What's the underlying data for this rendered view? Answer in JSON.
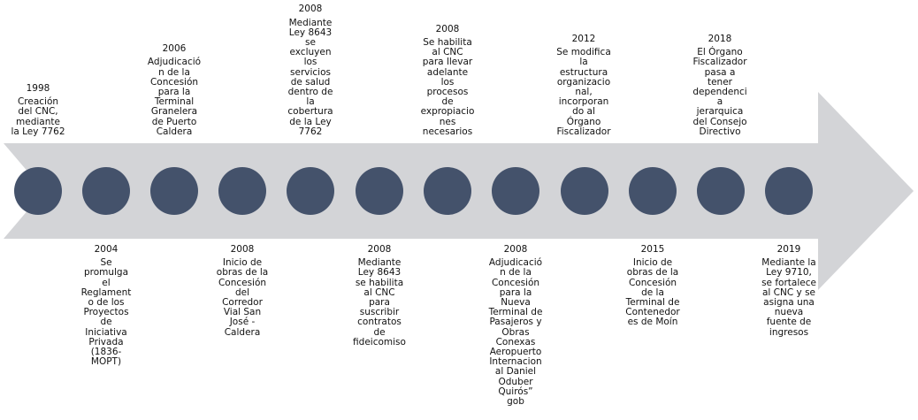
{
  "colors": {
    "arrow": "#d3d4d7",
    "dot": "#44526b",
    "text": "#111111"
  },
  "events_above": [
    {
      "year": "1998",
      "text": "Creación del CNC, mediante la Ley 7762"
    },
    {
      "year": "2006",
      "text": "Adjudicación de la Concesión para la Terminal Granelera de Puerto Caldera"
    },
    {
      "year": "2008",
      "text": "Mediante Ley 8643 se excluyen los servicios de salud dentro de la cobertura de la Ley 7762"
    },
    {
      "year": "2008",
      "text": "Se habilita al CNC para llevar adelante los procesos de expropiaciones necesarios"
    },
    {
      "year": "2012",
      "text": "Se modifica la estructura organizacional, incorporando al Órgano Fiscalizador"
    },
    {
      "year": "2018",
      "text": "El Órgano Fiscalizador pasa a tener dependencia jerarquica del Consejo Directivo"
    }
  ],
  "events_below": [
    {
      "year": "2004",
      "text": "Se promulga el Reglamento de los Proyectos de Iniciativa Privada (1836-MOPT)"
    },
    {
      "year": "2008",
      "text": "Inicio de obras de la Concesión del Corredor Vial San José - Caldera"
    },
    {
      "year": "2008",
      "text": "Mediante Ley 8643 se habilita al CNC para suscribir contratos de fideicomiso"
    },
    {
      "year": "2008",
      "text": "Adjudicación de la Concesión para la Nueva Terminal de Pasajeros y Obras Conexas Aeropuerto Internacional Daniel Oduber Quirós” gob"
    },
    {
      "year": "2015",
      "text": "Inicio de obras de la Concesión de la Terminal de Contenedores de Moín"
    },
    {
      "year": "2019",
      "text": "Mediante la Ley 9710, se fortalece al CNC y se asigna una nueva fuente de ingresos"
    }
  ]
}
